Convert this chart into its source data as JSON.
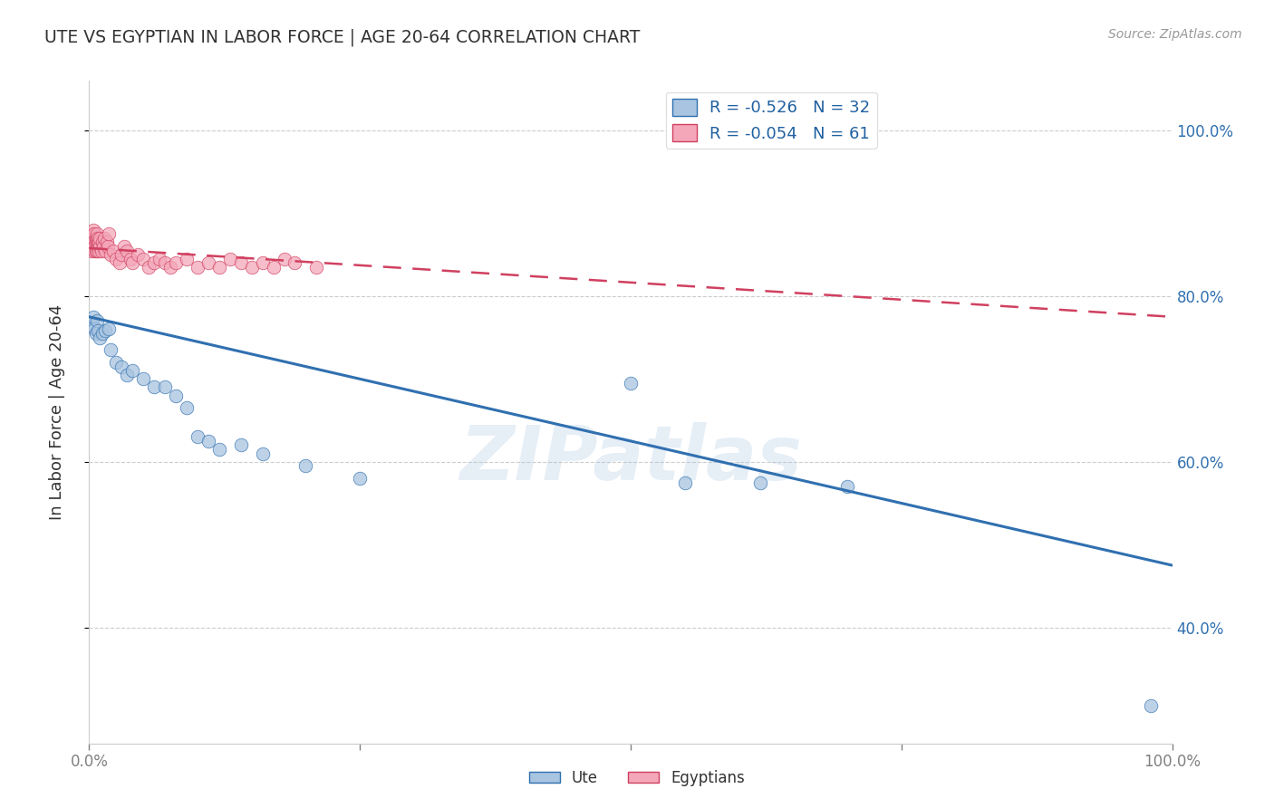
{
  "title": "UTE VS EGYPTIAN IN LABOR FORCE | AGE 20-64 CORRELATION CHART",
  "source": "Source: ZipAtlas.com",
  "ylabel": "In Labor Force | Age 20-64",
  "legend_labels": [
    "Ute",
    "Egyptians"
  ],
  "ute_color": "#a8c4e0",
  "ute_line_color": "#3070b0",
  "egyptian_color": "#f4a7b9",
  "egyptian_line_color": "#d04060",
  "ute_R": -0.526,
  "ute_N": 32,
  "egyptian_R": -0.054,
  "egyptian_N": 61,
  "watermark": "ZIPatlas",
  "background_color": "#ffffff",
  "grid_color": "#cccccc",
  "ute_x": [
    0.003,
    0.004,
    0.005,
    0.006,
    0.007,
    0.008,
    0.01,
    0.012,
    0.015,
    0.018,
    0.02,
    0.025,
    0.03,
    0.035,
    0.04,
    0.05,
    0.06,
    0.07,
    0.08,
    0.09,
    0.1,
    0.11,
    0.12,
    0.14,
    0.16,
    0.2,
    0.25,
    0.5,
    0.55,
    0.62,
    0.7,
    0.98
  ],
  "ute_y": [
    0.765,
    0.775,
    0.76,
    0.755,
    0.77,
    0.758,
    0.75,
    0.755,
    0.758,
    0.76,
    0.735,
    0.72,
    0.715,
    0.705,
    0.71,
    0.7,
    0.69,
    0.69,
    0.68,
    0.665,
    0.63,
    0.625,
    0.615,
    0.62,
    0.61,
    0.595,
    0.58,
    0.695,
    0.575,
    0.575,
    0.57,
    0.305
  ],
  "egyptian_x": [
    0.001,
    0.002,
    0.002,
    0.003,
    0.003,
    0.004,
    0.004,
    0.005,
    0.005,
    0.005,
    0.006,
    0.006,
    0.006,
    0.007,
    0.007,
    0.007,
    0.007,
    0.008,
    0.008,
    0.008,
    0.009,
    0.009,
    0.01,
    0.01,
    0.011,
    0.012,
    0.013,
    0.014,
    0.015,
    0.016,
    0.017,
    0.018,
    0.02,
    0.022,
    0.025,
    0.028,
    0.03,
    0.032,
    0.035,
    0.038,
    0.04,
    0.045,
    0.05,
    0.055,
    0.06,
    0.065,
    0.07,
    0.075,
    0.08,
    0.09,
    0.1,
    0.11,
    0.12,
    0.13,
    0.14,
    0.15,
    0.16,
    0.17,
    0.18,
    0.19,
    0.21
  ],
  "egyptian_y": [
    0.86,
    0.87,
    0.855,
    0.865,
    0.875,
    0.88,
    0.87,
    0.86,
    0.875,
    0.855,
    0.865,
    0.87,
    0.855,
    0.86,
    0.87,
    0.875,
    0.855,
    0.86,
    0.865,
    0.87,
    0.855,
    0.865,
    0.86,
    0.87,
    0.855,
    0.865,
    0.86,
    0.87,
    0.855,
    0.865,
    0.86,
    0.875,
    0.85,
    0.855,
    0.845,
    0.84,
    0.85,
    0.86,
    0.855,
    0.845,
    0.84,
    0.85,
    0.845,
    0.835,
    0.84,
    0.845,
    0.84,
    0.835,
    0.84,
    0.845,
    0.835,
    0.84,
    0.835,
    0.845,
    0.84,
    0.835,
    0.84,
    0.835,
    0.845,
    0.84,
    0.835
  ],
  "ute_line_x0": 0.0,
  "ute_line_x1": 1.0,
  "ute_line_y0": 0.775,
  "ute_line_y1": 0.475,
  "egyptian_line_x0": 0.0,
  "egyptian_line_x1": 1.0,
  "egyptian_line_y0": 0.858,
  "egyptian_line_y1": 0.775,
  "xlim": [
    0.0,
    1.0
  ],
  "ylim": [
    0.26,
    1.06
  ]
}
